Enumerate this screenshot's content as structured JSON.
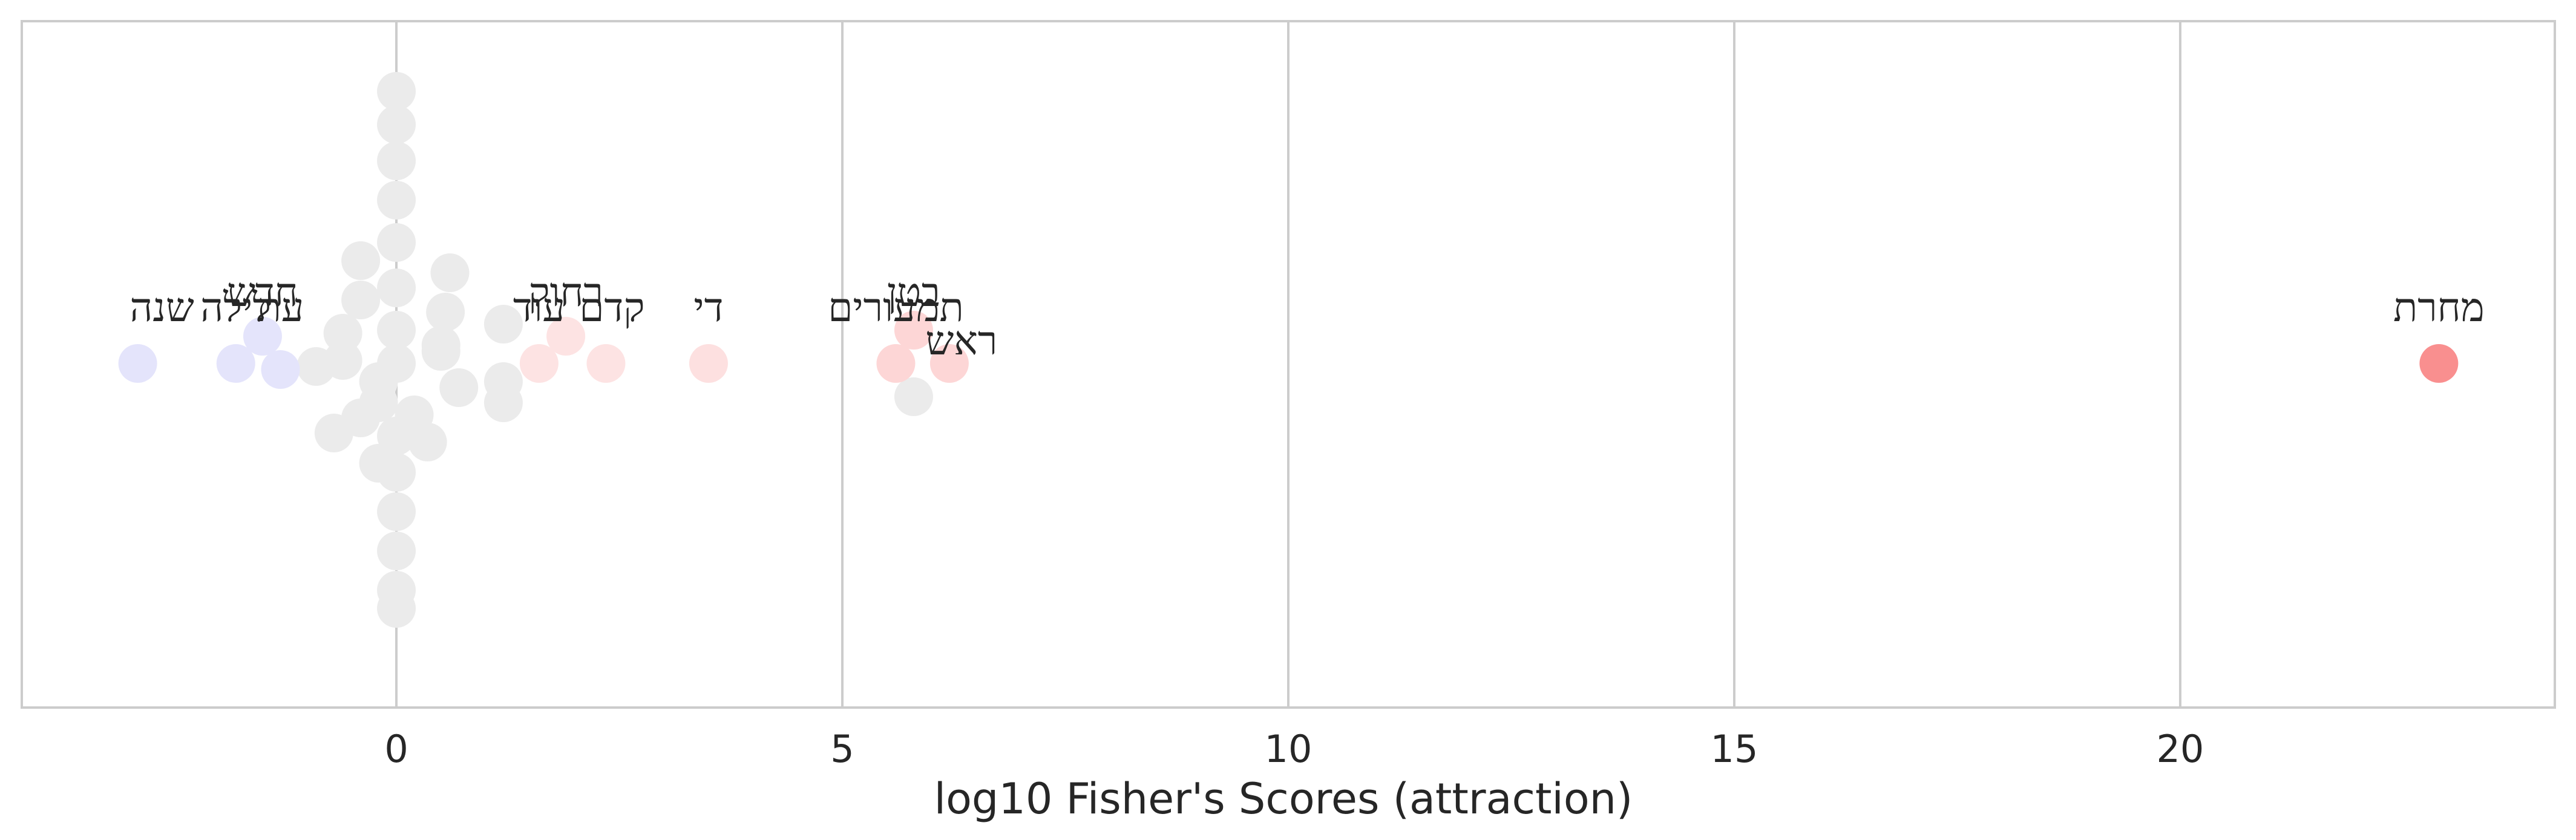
{
  "chart_data": {
    "type": "scatter",
    "subtype": "beeswarm",
    "title": "",
    "xlabel": "log10 Fisher's Scores (attraction)",
    "ylabel": "",
    "xlim": [
      -4.2,
      24.2
    ],
    "xticks": [
      0,
      5,
      10,
      15,
      20
    ],
    "grid": "vertical",
    "color_scale": "blue (repulsion) - gray (neutral) - red (attraction)",
    "labeled_points": [
      {
        "label": "מחרת",
        "x": 22.9,
        "color": "#f98f8f"
      },
      {
        "label": "בטן",
        "x": 5.8,
        "color": "#fdd6d6"
      },
      {
        "label": "תמעורים",
        "x": 5.6,
        "color": "#fdd6d6"
      },
      {
        "label": "ראש",
        "x": 6.2,
        "color": "#fdd6d6"
      },
      {
        "label": "די",
        "x": 3.5,
        "color": "#fde0e0"
      },
      {
        "label": "רחוק",
        "x": 1.9,
        "color": "#fde3e3"
      },
      {
        "label": "עוד",
        "x": 1.6,
        "color": "#fde3e3"
      },
      {
        "label": "קדם",
        "x": 2.35,
        "color": "#fde3e3"
      },
      {
        "label": "חדש",
        "x": -1.5,
        "color": "#e4e4fb"
      },
      {
        "label": "לילה",
        "x": -1.8,
        "color": "#e4e4fb"
      },
      {
        "label": "עת",
        "x": -1.3,
        "color": "#e4e4fb"
      },
      {
        "label": "שנה",
        "x": -2.9,
        "color": "#e4e4fb"
      }
    ],
    "unlabeled_points": {
      "color": "#ebebeb",
      "x": [
        0,
        0,
        0,
        0,
        0,
        0,
        0,
        0,
        0,
        0,
        0,
        0,
        0,
        0,
        -0.4,
        -0.4,
        -0.6,
        -0.9,
        -0.2,
        -0.7,
        -0.2,
        -0.6,
        -0.4,
        -0.2,
        0.6,
        0.55,
        0.5,
        0.7,
        0.2,
        0.35,
        0.5,
        1.2,
        1.2,
        1.2,
        5.8
      ]
    }
  }
}
